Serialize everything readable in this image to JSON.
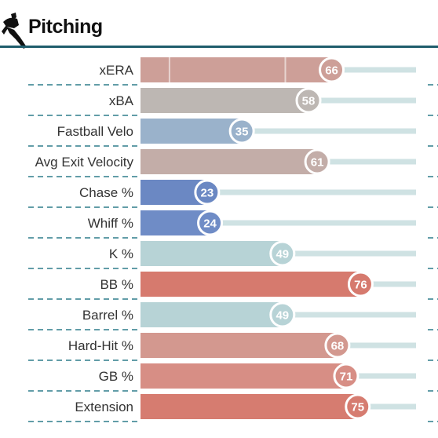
{
  "header": {
    "title": "Pitching",
    "icon": "pitcher-icon"
  },
  "chart_data": {
    "type": "bar",
    "orientation": "horizontal",
    "title": "",
    "xlabel": "",
    "ylabel": "",
    "xlim": [
      0,
      100
    ],
    "categories": [
      "xERA",
      "xBA",
      "Fastball Velo",
      "Avg Exit Velocity",
      "Chase %",
      "Whiff %",
      "K %",
      "BB %",
      "Barrel %",
      "Hard-Hit %",
      "GB %",
      "Extension"
    ],
    "values": [
      66,
      58,
      35,
      61,
      23,
      24,
      49,
      76,
      49,
      68,
      71,
      75
    ],
    "colors": [
      "#cd9f98",
      "#bdb7b3",
      "#9ab2cb",
      "#c3ada8",
      "#6b88c3",
      "#6f8cc6",
      "#b7d3d6",
      "#d67a6e",
      "#b7d3d6",
      "#d3988f",
      "#d78e85",
      "#d67c70"
    ],
    "track_color": "#cfe2e3",
    "grid": true
  }
}
